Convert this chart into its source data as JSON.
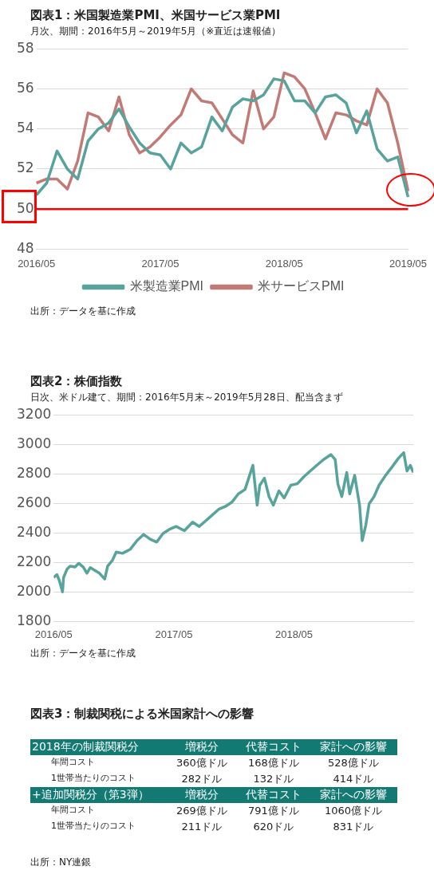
{
  "chart_data": [
    {
      "type": "line",
      "title": "図表1：米国製造業PMI、米国サービス業PMI",
      "subtitle": "月次、期間：2016年5月～2019年5月（※直近は速報値）",
      "categories": [
        "2016/05",
        null,
        null,
        null,
        null,
        null,
        null,
        null,
        null,
        null,
        null,
        null,
        "2017/05",
        null,
        null,
        null,
        null,
        null,
        null,
        null,
        null,
        null,
        null,
        null,
        "2018/05",
        null,
        null,
        null,
        null,
        null,
        null,
        null,
        null,
        null,
        null,
        null,
        "2019/05"
      ],
      "series": [
        {
          "name": "米製造業PMI",
          "color": "#58a39c",
          "values": [
            50.7,
            51.3,
            52.9,
            52.0,
            51.5,
            53.4,
            54.0,
            54.3,
            55.0,
            54.1,
            53.3,
            52.8,
            52.7,
            52.0,
            53.3,
            52.8,
            53.1,
            54.6,
            53.9,
            55.1,
            55.5,
            55.4,
            55.7,
            56.5,
            56.4,
            55.4,
            55.4,
            54.8,
            55.6,
            55.7,
            55.3,
            53.8,
            54.9,
            53.0,
            52.4,
            52.6,
            50.6
          ]
        },
        {
          "name": "米サービスPMI",
          "color": "#c27a77",
          "values": [
            51.3,
            51.5,
            51.5,
            51.0,
            52.4,
            54.8,
            54.6,
            53.9,
            55.6,
            53.7,
            52.8,
            53.1,
            53.6,
            54.2,
            54.7,
            56.0,
            55.4,
            55.3,
            54.5,
            53.7,
            53.3,
            55.9,
            54.0,
            54.6,
            56.8,
            56.6,
            56.0,
            54.8,
            53.5,
            54.8,
            54.7,
            54.4,
            54.2,
            56.0,
            55.3,
            53.3,
            50.9
          ]
        }
      ],
      "ylim": [
        48,
        58
      ],
      "yticks": [
        48,
        50,
        52,
        54,
        56,
        58
      ],
      "grid": "y",
      "legend": "bottom",
      "marker": "none",
      "line_style": "solid",
      "ref_lines": [
        {
          "axis": "y",
          "value": 50,
          "color": "#ff0000"
        }
      ],
      "annotations": [
        "出所：データを基に作成"
      ]
    },
    {
      "type": "line",
      "title": "図表2：株価指数",
      "subtitle": "日次、米ドル建て、期間：2016年5月末～2019年5月28日、配当含まず",
      "x": [
        "2016-05-31",
        "2016-06-10",
        "2016-06-17",
        "2016-06-27",
        "2016-06-30",
        "2016-07-11",
        "2016-07-20",
        "2016-08-04",
        "2016-08-15",
        "2016-08-29",
        "2016-09-09",
        "2016-09-19",
        "2016-10-03",
        "2016-10-17",
        "2016-11-02",
        "2016-11-11",
        "2016-11-25",
        "2016-12-07",
        "2016-12-26",
        "2017-01-19",
        "2017-02-08",
        "2017-02-28",
        "2017-03-20",
        "2017-04-09",
        "2017-04-28",
        "2017-05-18",
        "2017-06-07",
        "2017-07-02",
        "2017-07-27",
        "2017-08-16",
        "2017-09-15",
        "2017-10-14",
        "2017-11-03",
        "2017-11-23",
        "2017-12-13",
        "2018-01-02",
        "2018-01-26",
        "2018-02-08",
        "2018-02-16",
        "2018-03-02",
        "2018-03-16",
        "2018-03-29",
        "2018-04-15",
        "2018-05-01",
        "2018-05-21",
        "2018-06-10",
        "2018-06-30",
        "2018-07-19",
        "2018-08-08",
        "2018-08-28",
        "2018-09-20",
        "2018-10-03",
        "2018-10-11",
        "2018-10-23",
        "2018-11-07",
        "2018-11-16",
        "2018-12-01",
        "2018-12-16",
        "2018-12-24",
        "2019-01-04",
        "2019-01-14",
        "2019-01-29",
        "2019-02-13",
        "2019-03-05",
        "2019-03-25",
        "2019-04-13",
        "2019-04-29",
        "2019-05-09",
        "2019-05-19",
        "2019-05-28"
      ],
      "series": [
        {
          "color": "#58a39c",
          "values": [
            2099,
            2117,
            2079,
            2001,
            2098,
            2156,
            2175,
            2169,
            2194,
            2169,
            2127,
            2165,
            2146,
            2127,
            2088,
            2175,
            2213,
            2271,
            2262,
            2290,
            2348,
            2390,
            2358,
            2338,
            2396,
            2425,
            2444,
            2415,
            2473,
            2444,
            2502,
            2560,
            2579,
            2608,
            2665,
            2694,
            2858,
            2588,
            2723,
            2771,
            2646,
            2588,
            2685,
            2637,
            2723,
            2733,
            2781,
            2819,
            2858,
            2896,
            2931,
            2896,
            2733,
            2646,
            2810,
            2665,
            2790,
            2588,
            2348,
            2454,
            2598,
            2646,
            2723,
            2790,
            2848,
            2906,
            2944,
            2819,
            2858,
            2810
          ]
        }
      ],
      "xlim": [
        "2016-05-31",
        "2019-05-28"
      ],
      "xticks": [
        {
          "value": "2016-05-31",
          "label": "2016/05"
        },
        {
          "value": "2017-05-31",
          "label": "2017/05"
        },
        {
          "value": "2018-05-31",
          "label": "2018/05"
        }
      ],
      "ylim": [
        1800,
        3200
      ],
      "yticks": [
        1800,
        2000,
        2200,
        2400,
        2600,
        2800,
        3000,
        3200
      ],
      "grid": "y",
      "legend": false,
      "marker": "none",
      "line_style": "solid",
      "annotations": [
        "出所：データを基に作成"
      ]
    },
    {
      "type": "other",
      "title": "図表3：制裁関税による米国家計への影響",
      "annotations": [
        "2018年の制裁関税分",
        "増税分",
        "代替コスト",
        "家計への影響",
        "年間コスト",
        "360億ドル",
        "168億ドル",
        "528億ドル",
        "1世帯当たりのコスト",
        "282ドル",
        "132ドル",
        "414ドル",
        "+追加関税分（第3弾）",
        "増税分",
        "代替コスト",
        "家計への影響",
        "年間コスト",
        "269億ドル",
        "791億ドル",
        "1060億ドル",
        "1世帯当たりのコスト",
        "211ドル",
        "620ドル",
        "831ドル",
        "出所：NY連銀"
      ]
    }
  ]
}
